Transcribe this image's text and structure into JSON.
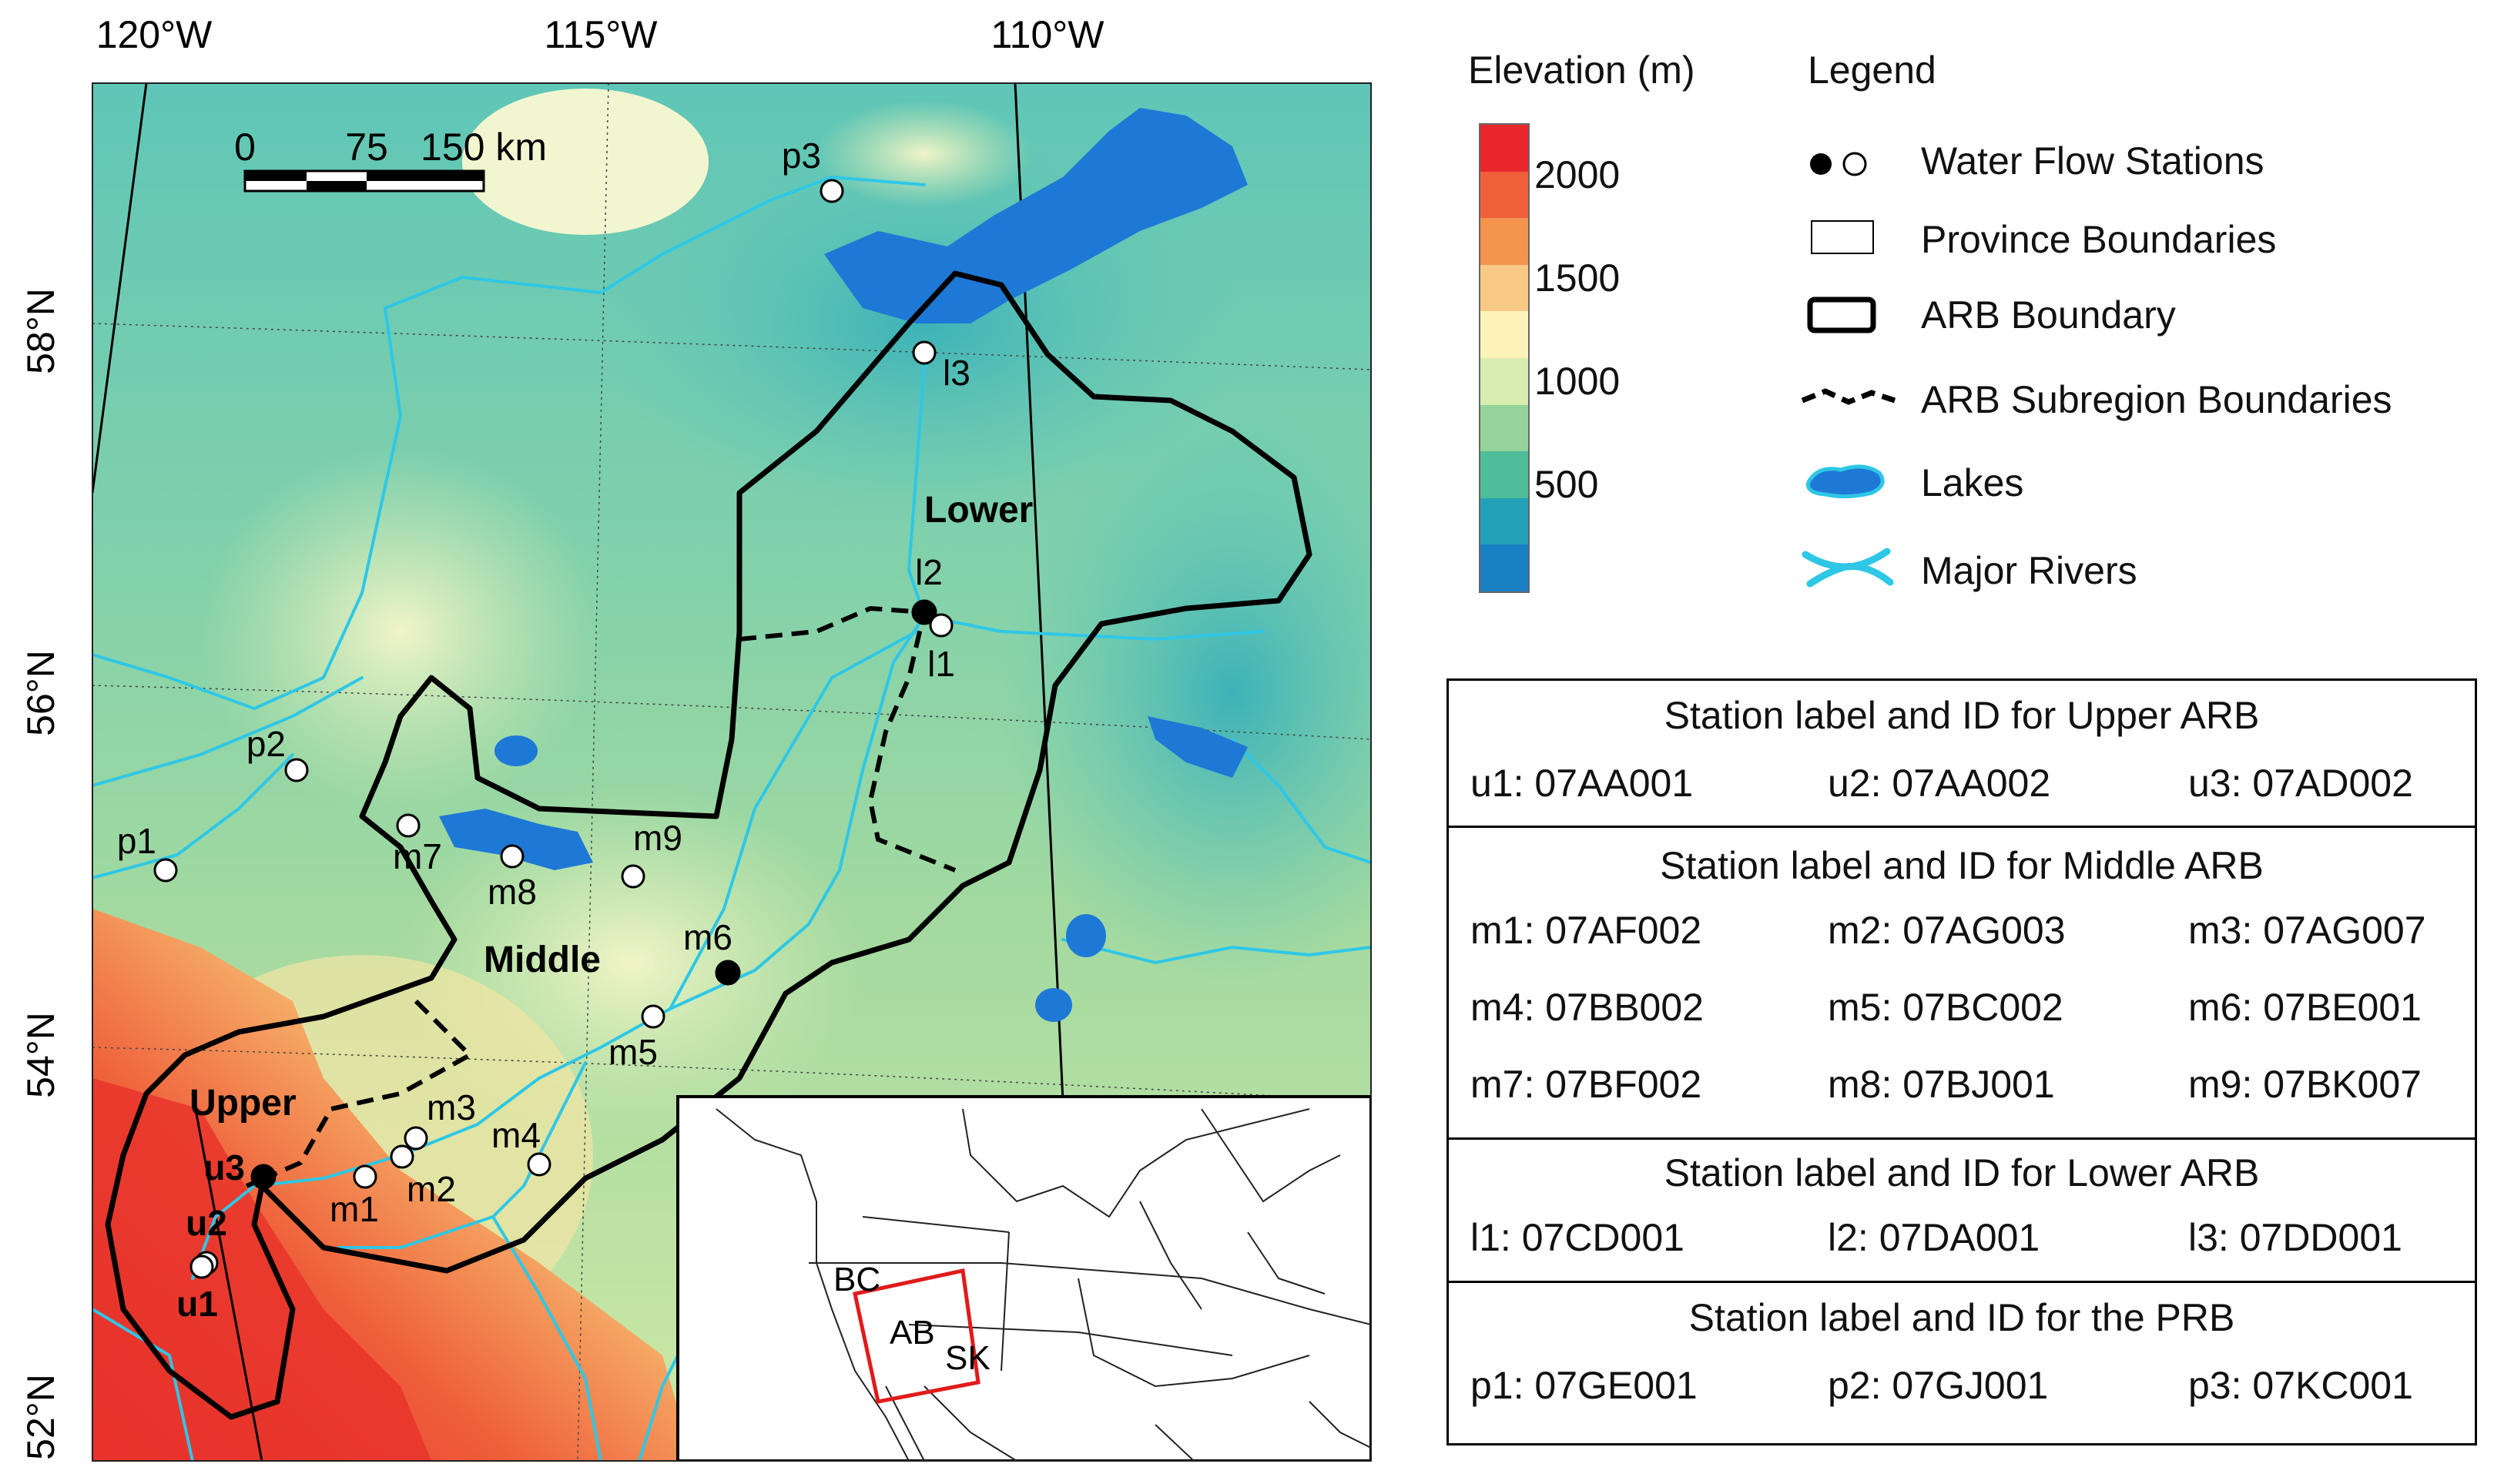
{
  "map": {
    "lon_labels": [
      "120°W",
      "115°W",
      "110°W"
    ],
    "lat_labels": [
      "58°N",
      "56°N",
      "54°N",
      "52°N"
    ],
    "scale": {
      "labels": [
        "0",
        "75",
        "150 km"
      ]
    },
    "regions": {
      "upper": "Upper",
      "middle": "Middle",
      "lower": "Lower"
    },
    "stations": [
      {
        "id": "p3",
        "filled": false
      },
      {
        "id": "l3",
        "filled": false
      },
      {
        "id": "l2",
        "filled": true
      },
      {
        "id": "l1",
        "filled": false
      },
      {
        "id": "p2",
        "filled": false
      },
      {
        "id": "p1",
        "filled": false
      },
      {
        "id": "m7",
        "filled": false
      },
      {
        "id": "m8",
        "filled": false
      },
      {
        "id": "m9",
        "filled": false
      },
      {
        "id": "m6",
        "filled": true
      },
      {
        "id": "m5",
        "filled": false
      },
      {
        "id": "m4",
        "filled": false
      },
      {
        "id": "m3",
        "filled": false
      },
      {
        "id": "m2",
        "filled": false
      },
      {
        "id": "m1",
        "filled": false
      },
      {
        "id": "u3",
        "filled": true
      },
      {
        "id": "u2",
        "filled": false
      },
      {
        "id": "u1",
        "filled": false
      }
    ],
    "inset": {
      "labels": [
        "BC",
        "AB",
        "SK"
      ]
    }
  },
  "elevation": {
    "title": "Elevation (m)",
    "tick_labels": [
      "2000",
      "1500",
      "1000",
      "500"
    ],
    "colors": [
      "#e8262b",
      "#ef5f3a",
      "#f3944d",
      "#f8c985",
      "#fdf3b8",
      "#d8edb0",
      "#94d49b",
      "#4dbd9a",
      "#25a0b9",
      "#1a80c4"
    ]
  },
  "legend": {
    "title": "Legend",
    "items": [
      "Water Flow Stations",
      "Province Boundaries",
      "ARB Boundary",
      "ARB Subregion Boundaries",
      "Lakes",
      "Major Rivers"
    ]
  },
  "table": {
    "sections": [
      {
        "header": "Station label and ID for Upper ARB",
        "rows": [
          [
            "u1:  07AA001",
            "u2:  07AA002",
            "u3:  07AD002"
          ]
        ]
      },
      {
        "header": "Station label and ID for Middle ARB",
        "rows": [
          [
            "m1: 07AF002",
            "m2: 07AG003",
            "m3: 07AG007"
          ],
          [
            "m4: 07BB002",
            "m5: 07BC002",
            "m6: 07BE001"
          ],
          [
            "m7: 07BF002",
            "m8: 07BJ001",
            "m9: 07BK007"
          ]
        ]
      },
      {
        "header": "Station label and ID for Lower ARB",
        "rows": [
          [
            "l1: 07CD001",
            "l2: 07DA001",
            "l3: 07DD001"
          ]
        ]
      },
      {
        "header": "Station label and ID for the PRB",
        "rows": [
          [
            "p1: 07GE001",
            "p2: 07GJ001",
            "p3: 07KC001"
          ]
        ]
      }
    ]
  }
}
